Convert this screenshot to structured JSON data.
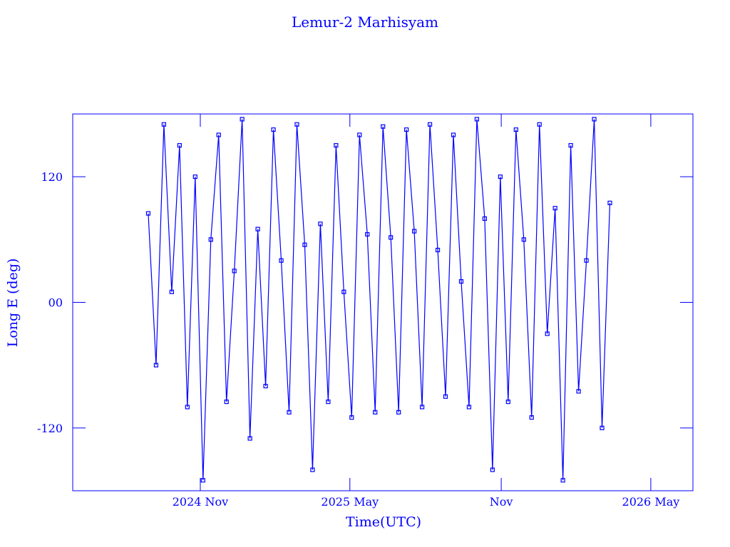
{
  "chart_data": {
    "type": "line",
    "title": "Lemur-2 Marhisyam",
    "x_label": "Time(UTC)",
    "y_label": "Long E (deg)",
    "x": [
      2024.66,
      2024.686,
      2024.712,
      2024.738,
      2024.764,
      2024.79,
      2024.816,
      2024.842,
      2024.868,
      2024.894,
      2024.92,
      2024.946,
      2024.972,
      2024.998,
      2025.024,
      2025.05,
      2025.076,
      2025.102,
      2025.128,
      2025.154,
      2025.18,
      2025.206,
      2025.232,
      2025.258,
      2025.284,
      2025.31,
      2025.336,
      2025.362,
      2025.388,
      2025.414,
      2025.44,
      2025.466,
      2025.492,
      2025.518,
      2025.544,
      2025.57,
      2025.596,
      2025.622,
      2025.648,
      2025.674,
      2025.7,
      2025.726,
      2025.752,
      2025.778,
      2025.804,
      2025.83,
      2025.856,
      2025.882,
      2025.908,
      2025.934,
      2025.96,
      2025.986,
      2026.012,
      2026.038,
      2026.064,
      2026.09,
      2026.116,
      2026.142,
      2026.168,
      2026.194
    ],
    "series": [
      {
        "color": "#0000ff",
        "values": [
          85,
          -60,
          170,
          10,
          150,
          -100,
          120,
          -170,
          60,
          160,
          -95,
          30,
          175,
          -130,
          70,
          -80,
          165,
          40,
          -105,
          170,
          55,
          -160,
          75,
          -95,
          150,
          10,
          -110,
          160,
          65,
          -105,
          168,
          62,
          -105,
          165,
          68,
          -100,
          170,
          50,
          -90,
          160,
          20,
          -100,
          175,
          80,
          -160,
          120,
          -95,
          165,
          60,
          -110,
          170,
          -30,
          90,
          -170,
          150,
          -85,
          40,
          175,
          -120,
          95
        ]
      }
    ],
    "xlim": [
      2024.409,
      2026.47
    ],
    "xticks": [
      {
        "value": 2024.833,
        "label": "2024 Nov"
      },
      {
        "value": 2025.33,
        "label": "2025 May"
      },
      {
        "value": 2025.833,
        "label": "Nov"
      },
      {
        "value": 2026.33,
        "label": "2026 May"
      }
    ],
    "ylim": [
      -180,
      180
    ],
    "yticks": [
      -120,
      {
        "value": 0,
        "label": "00"
      },
      120
    ]
  }
}
